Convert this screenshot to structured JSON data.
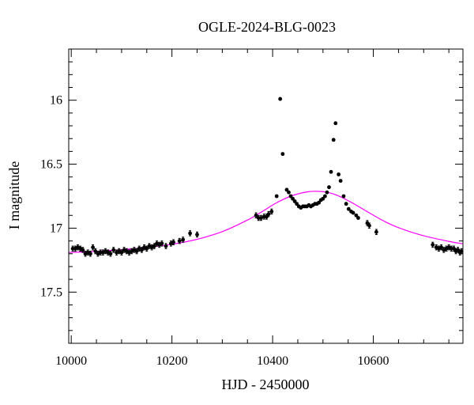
{
  "chart_data": {
    "type": "scatter",
    "title": "OGLE-2024-BLG-0023",
    "xlabel": "HJD - 2450000",
    "ylabel": "I magnitude",
    "xlim": [
      9995,
      10778
    ],
    "ylim": [
      17.9,
      15.6
    ],
    "y_inverted": true,
    "x_ticks": [
      10000,
      10200,
      10400,
      10600
    ],
    "y_ticks": [
      16,
      16.5,
      17,
      17.5
    ],
    "x_tick_labels": [
      "10000",
      "10200",
      "10400",
      "10600"
    ],
    "y_tick_labels": [
      "16",
      "16.5",
      "17",
      "17.5"
    ],
    "model_color": "#ff00ff",
    "point_color": "#000000",
    "model": [
      [
        9995,
        17.191
      ],
      [
        10050,
        17.181
      ],
      [
        10100,
        17.168
      ],
      [
        10150,
        17.151
      ],
      [
        10200,
        17.126
      ],
      [
        10250,
        17.087
      ],
      [
        10300,
        17.027
      ],
      [
        10350,
        16.937
      ],
      [
        10380,
        16.868
      ],
      [
        10410,
        16.797
      ],
      [
        10440,
        16.744
      ],
      [
        10470,
        16.716
      ],
      [
        10490,
        16.712
      ],
      [
        10510,
        16.721
      ],
      [
        10530,
        16.746
      ],
      [
        10560,
        16.806
      ],
      [
        10590,
        16.876
      ],
      [
        10620,
        16.942
      ],
      [
        10650,
        16.996
      ],
      [
        10700,
        17.06
      ],
      [
        10750,
        17.103
      ],
      [
        10778,
        17.122
      ]
    ],
    "points": [
      [
        10003,
        17.16,
        0.02
      ],
      [
        10008,
        17.16,
        0.02
      ],
      [
        10013,
        17.15,
        0.02
      ],
      [
        10018,
        17.16,
        0.02
      ],
      [
        10023,
        17.17,
        0.02
      ],
      [
        10028,
        17.2,
        0.02
      ],
      [
        10033,
        17.19,
        0.02
      ],
      [
        10038,
        17.2,
        0.02
      ],
      [
        10043,
        17.15,
        0.02
      ],
      [
        10048,
        17.18,
        0.02
      ],
      [
        10053,
        17.2,
        0.02
      ],
      [
        10058,
        17.19,
        0.02
      ],
      [
        10063,
        17.19,
        0.02
      ],
      [
        10068,
        17.18,
        0.02
      ],
      [
        10073,
        17.19,
        0.02
      ],
      [
        10078,
        17.2,
        0.02
      ],
      [
        10084,
        17.17,
        0.02
      ],
      [
        10090,
        17.19,
        0.02
      ],
      [
        10095,
        17.18,
        0.02
      ],
      [
        10100,
        17.19,
        0.02
      ],
      [
        10105,
        17.17,
        0.02
      ],
      [
        10110,
        17.18,
        0.02
      ],
      [
        10115,
        17.19,
        0.02
      ],
      [
        10120,
        17.18,
        0.02
      ],
      [
        10125,
        17.17,
        0.02
      ],
      [
        10130,
        17.18,
        0.02
      ],
      [
        10135,
        17.16,
        0.02
      ],
      [
        10140,
        17.17,
        0.02
      ],
      [
        10145,
        17.15,
        0.02
      ],
      [
        10150,
        17.16,
        0.02
      ],
      [
        10155,
        17.14,
        0.02
      ],
      [
        10160,
        17.15,
        0.02
      ],
      [
        10165,
        17.14,
        0.02
      ],
      [
        10170,
        17.12,
        0.02
      ],
      [
        10175,
        17.13,
        0.02
      ],
      [
        10180,
        17.12,
        0.02
      ],
      [
        10188,
        17.14,
        0.02
      ],
      [
        10198,
        17.12,
        0.02
      ],
      [
        10203,
        17.11,
        0.02
      ],
      [
        10215,
        17.1,
        0.02
      ],
      [
        10222,
        17.09,
        0.02
      ],
      [
        10236,
        17.04,
        0.02
      ],
      [
        10250,
        17.05,
        0.02
      ],
      [
        10367,
        16.9,
        0.02
      ],
      [
        10372,
        16.92,
        0.02
      ],
      [
        10377,
        16.92,
        0.02
      ],
      [
        10383,
        16.91,
        0.02
      ],
      [
        10388,
        16.91,
        0.02
      ],
      [
        10392,
        16.89,
        0.02
      ],
      [
        10398,
        16.87,
        0.02
      ],
      [
        10408,
        16.75,
        0.01
      ],
      [
        10415,
        15.99,
        0.01
      ],
      [
        10420,
        16.42,
        0.01
      ],
      [
        10428,
        16.7,
        0.01
      ],
      [
        10432,
        16.72,
        0.01
      ],
      [
        10436,
        16.75,
        0.01
      ],
      [
        10440,
        16.77,
        0.01
      ],
      [
        10444,
        16.79,
        0.01
      ],
      [
        10448,
        16.81,
        0.01
      ],
      [
        10452,
        16.83,
        0.01
      ],
      [
        10456,
        16.84,
        0.01
      ],
      [
        10460,
        16.83,
        0.01
      ],
      [
        10464,
        16.83,
        0.01
      ],
      [
        10468,
        16.83,
        0.01
      ],
      [
        10472,
        16.82,
        0.01
      ],
      [
        10476,
        16.83,
        0.01
      ],
      [
        10480,
        16.82,
        0.01
      ],
      [
        10484,
        16.81,
        0.01
      ],
      [
        10488,
        16.81,
        0.01
      ],
      [
        10492,
        16.8,
        0.01
      ],
      [
        10496,
        16.78,
        0.01
      ],
      [
        10500,
        16.77,
        0.01
      ],
      [
        10504,
        16.75,
        0.01
      ],
      [
        10508,
        16.72,
        0.01
      ],
      [
        10512,
        16.68,
        0.01
      ],
      [
        10516,
        16.56,
        0.01
      ],
      [
        10521,
        16.31,
        0.01
      ],
      [
        10525,
        16.18,
        0.01
      ],
      [
        10531,
        16.58,
        0.01
      ],
      [
        10535,
        16.63,
        0.01
      ],
      [
        10541,
        16.75,
        0.01
      ],
      [
        10546,
        16.81,
        0.01
      ],
      [
        10551,
        16.85,
        0.01
      ],
      [
        10556,
        16.87,
        0.01
      ],
      [
        10560,
        16.88,
        0.01
      ],
      [
        10566,
        16.9,
        0.01
      ],
      [
        10570,
        16.92,
        0.01
      ],
      [
        10588,
        16.96,
        0.02
      ],
      [
        10592,
        16.98,
        0.02
      ],
      [
        10606,
        17.03,
        0.02
      ],
      [
        10718,
        17.13,
        0.02
      ],
      [
        10725,
        17.15,
        0.02
      ],
      [
        10730,
        17.16,
        0.02
      ],
      [
        10735,
        17.15,
        0.02
      ],
      [
        10740,
        17.17,
        0.02
      ],
      [
        10745,
        17.16,
        0.02
      ],
      [
        10750,
        17.15,
        0.02
      ],
      [
        10755,
        17.16,
        0.02
      ],
      [
        10760,
        17.16,
        0.02
      ],
      [
        10764,
        17.18,
        0.02
      ],
      [
        10768,
        17.17,
        0.02
      ],
      [
        10772,
        17.19,
        0.02
      ],
      [
        10775,
        17.18,
        0.02
      ]
    ]
  }
}
